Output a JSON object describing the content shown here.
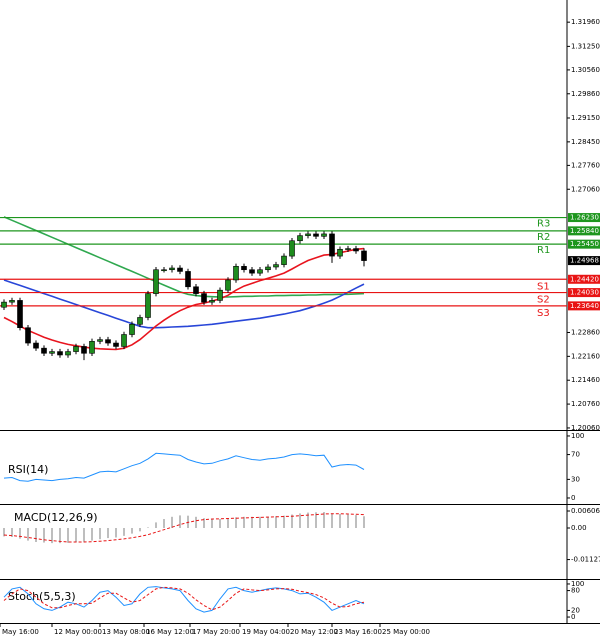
{
  "chart_data": [
    {
      "type": "candlestick",
      "open": [
        1.236,
        1.2375,
        1.238,
        1.23,
        1.2255,
        1.224,
        1.2225,
        1.223,
        1.222,
        1.223,
        1.2245,
        1.2225,
        1.226,
        1.2265,
        1.2255,
        1.2245,
        1.228,
        1.231,
        1.233,
        1.24,
        1.247,
        1.247,
        1.2475,
        1.2465,
        1.242,
        1.24,
        1.2375,
        1.238,
        1.241,
        1.244,
        1.248,
        1.247,
        1.246,
        1.247,
        1.2478,
        1.2485,
        1.251,
        1.2555,
        1.257,
        1.2575,
        1.2568,
        1.2575,
        1.251,
        1.253,
        1.2532,
        1.2525
      ],
      "high": [
        1.2383,
        1.2388,
        1.2388,
        1.2308,
        1.2263,
        1.2248,
        1.2238,
        1.2238,
        1.2238,
        1.2253,
        1.2253,
        1.2268,
        1.2273,
        1.2273,
        1.2263,
        1.2288,
        1.2318,
        1.2338,
        1.2408,
        1.2478,
        1.2478,
        1.2483,
        1.2483,
        1.2473,
        1.2428,
        1.2408,
        1.2388,
        1.2418,
        1.2448,
        1.2488,
        1.2488,
        1.2478,
        1.2478,
        1.2486,
        1.2493,
        1.2518,
        1.2563,
        1.2578,
        1.2583,
        1.2583,
        1.2583,
        1.2583,
        1.2538,
        1.254,
        1.254,
        1.2533
      ],
      "low": [
        1.2352,
        1.2367,
        1.2292,
        1.2247,
        1.2232,
        1.2217,
        1.2217,
        1.2212,
        1.2212,
        1.2222,
        1.2205,
        1.2217,
        1.2252,
        1.2247,
        1.2237,
        1.2237,
        1.2272,
        1.2302,
        1.2322,
        1.2392,
        1.2462,
        1.2462,
        1.2457,
        1.2412,
        1.2392,
        1.2367,
        1.2367,
        1.2372,
        1.2402,
        1.2432,
        1.2462,
        1.2452,
        1.2452,
        1.2462,
        1.247,
        1.2477,
        1.2502,
        1.2547,
        1.2562,
        1.256,
        1.256,
        1.249,
        1.2502,
        1.2522,
        1.2517,
        1.248
      ],
      "close": [
        1.2375,
        1.238,
        1.23,
        1.2255,
        1.224,
        1.2225,
        1.223,
        1.222,
        1.223,
        1.2245,
        1.2225,
        1.226,
        1.2265,
        1.2255,
        1.2245,
        1.228,
        1.231,
        1.233,
        1.24,
        1.247,
        1.247,
        1.2475,
        1.2465,
        1.242,
        1.24,
        1.2375,
        1.238,
        1.241,
        1.244,
        1.248,
        1.247,
        1.246,
        1.247,
        1.2478,
        1.2485,
        1.251,
        1.2555,
        1.257,
        1.2575,
        1.2568,
        1.2575,
        1.251,
        1.253,
        1.2532,
        1.2525,
        1.24968
      ],
      "up_color": "#1e8c1e",
      "down_color": "#000000",
      "series": [
        {
          "color": "#2fa84f",
          "values": [
            1.2625,
            1.2615,
            1.2605,
            1.2595,
            1.2585,
            1.2575,
            1.2565,
            1.2555,
            1.2545,
            1.2535,
            1.2525,
            1.2515,
            1.2505,
            1.2495,
            1.2485,
            1.2475,
            1.2465,
            1.2455,
            1.2445,
            1.2435,
            1.2425,
            1.2415,
            1.2405,
            1.2398,
            1.2394,
            1.2392,
            1.2391,
            1.239,
            1.239,
            1.2391,
            1.2392,
            1.2392,
            1.2393,
            1.2393,
            1.2394,
            1.2394,
            1.2395,
            1.2395,
            1.2396,
            1.2396,
            1.2397,
            1.2397,
            1.2398,
            1.2398,
            1.2399,
            1.24
          ]
        },
        {
          "color": "#2846d8",
          "values": [
            1.244,
            1.2432,
            1.2424,
            1.2416,
            1.2408,
            1.24,
            1.2392,
            1.2384,
            1.2376,
            1.2368,
            1.236,
            1.2352,
            1.2344,
            1.2336,
            1.2328,
            1.232,
            1.2312,
            1.2304,
            1.23,
            1.23,
            1.2301,
            1.2302,
            1.2303,
            1.2304,
            1.2306,
            1.2308,
            1.231,
            1.2313,
            1.2316,
            1.2319,
            1.2322,
            1.2325,
            1.2328,
            1.2332,
            1.2336,
            1.234,
            1.2345,
            1.235,
            1.2357,
            1.2364,
            1.2372,
            1.2381,
            1.2392,
            1.2404,
            1.2416,
            1.2428
          ]
        },
        {
          "color": "#e8141e",
          "values": [
            1.233,
            1.2318,
            1.2305,
            1.2292,
            1.2282,
            1.2272,
            1.2264,
            1.2257,
            1.2251,
            1.2247,
            1.2243,
            1.224,
            1.2238,
            1.2237,
            1.2236,
            1.224,
            1.225,
            1.2265,
            1.2285,
            1.2305,
            1.2322,
            1.2337,
            1.235,
            1.236,
            1.2368,
            1.2372,
            1.2378,
            1.2385,
            1.2395,
            1.241,
            1.2422,
            1.243,
            1.2438,
            1.2445,
            1.2452,
            1.246,
            1.2472,
            1.2485,
            1.2497,
            1.2505,
            1.2513,
            1.2515,
            1.252,
            1.2525,
            1.253,
            1.2532
          ]
        }
      ],
      "levels": [
        {
          "name": "R3",
          "value": 1.2623,
          "label": "1.26230",
          "color": "#1e961e"
        },
        {
          "name": "R2",
          "value": 1.2584,
          "label": "1.25840",
          "color": "#1e961e"
        },
        {
          "name": "R1",
          "value": 1.2545,
          "label": "1.25450",
          "color": "#1e961e"
        },
        {
          "name": "S1",
          "value": 1.2442,
          "label": "1.24420",
          "color": "#e81414"
        },
        {
          "name": "S2",
          "value": 1.2403,
          "label": "1.24030",
          "color": "#e81414"
        },
        {
          "name": "S3",
          "value": 1.2364,
          "label": "1.23640",
          "color": "#e81414"
        }
      ],
      "current_price": {
        "value": 1.24968,
        "label": "1.24968"
      },
      "ylim": [
        1.2,
        1.3261
      ],
      "yticks": [
        {
          "value": 1.3196,
          "label": "1.31960"
        },
        {
          "value": 1.3125,
          "label": "1.31250"
        },
        {
          "value": 1.3056,
          "label": "1.30560"
        },
        {
          "value": 1.2986,
          "label": "1.29860"
        },
        {
          "value": 1.2915,
          "label": "1.29150"
        },
        {
          "value": 1.2845,
          "label": "1.28450"
        },
        {
          "value": 1.2776,
          "label": "1.27760"
        },
        {
          "value": 1.2706,
          "label": "1.27060"
        },
        {
          "value": 1.2286,
          "label": "1.22860"
        },
        {
          "value": 1.2216,
          "label": "1.22160"
        },
        {
          "value": 1.2146,
          "label": "1.21460"
        },
        {
          "value": 1.2076,
          "label": "1.20760"
        },
        {
          "value": 1.2006,
          "label": "1.20060"
        }
      ]
    },
    {
      "type": "line",
      "title": "RSI(14)",
      "series": [
        {
          "color": "#1e90ff",
          "values": [
            32,
            33,
            28,
            27,
            30,
            29,
            28,
            30,
            31,
            33,
            32,
            37,
            42,
            43,
            42,
            47,
            52,
            56,
            63,
            72,
            71,
            70,
            69,
            62,
            58,
            55,
            56,
            60,
            63,
            68,
            65,
            62,
            61,
            63,
            64,
            66,
            70,
            71,
            70,
            68,
            69,
            50,
            53,
            54,
            53,
            46
          ]
        }
      ],
      "ylim": [
        -9.7,
        108
      ],
      "yticks": [
        100,
        70,
        30,
        0
      ]
    },
    {
      "type": "macd",
      "title": "MACD(12,26,9)",
      "color": "#a8a8a8",
      "signal_color": "#e81414",
      "histogram": [
        -0.003,
        -0.0032,
        -0.0038,
        -0.0045,
        -0.005,
        -0.0052,
        -0.0054,
        -0.0054,
        -0.0053,
        -0.005,
        -0.0049,
        -0.0045,
        -0.004,
        -0.0036,
        -0.0034,
        -0.0028,
        -0.002,
        -0.0012,
        0.0002,
        0.002,
        0.0032,
        0.004,
        0.0045,
        0.0044,
        0.004,
        0.0035,
        0.0032,
        0.0032,
        0.0034,
        0.0038,
        0.004,
        0.004,
        0.004,
        0.0041,
        0.0042,
        0.0044,
        0.0048,
        0.0052,
        0.0055,
        0.0056,
        0.0057,
        0.0052,
        0.005,
        0.0048,
        0.0046,
        0.0042
      ],
      "signal": [
        -0.0025,
        -0.0027,
        -0.003,
        -0.0034,
        -0.0038,
        -0.0042,
        -0.0045,
        -0.0048,
        -0.005,
        -0.005,
        -0.005,
        -0.0049,
        -0.0047,
        -0.0045,
        -0.0042,
        -0.0039,
        -0.0035,
        -0.003,
        -0.0024,
        -0.0015,
        -0.0006,
        0.0003,
        0.0012,
        0.002,
        0.0026,
        0.003,
        0.0032,
        0.0033,
        0.0034,
        0.0035,
        0.0036,
        0.0037,
        0.0038,
        0.0039,
        0.004,
        0.0041,
        0.0042,
        0.0044,
        0.0046,
        0.0048,
        0.005,
        0.0051,
        0.0051,
        0.005,
        0.0049,
        0.0048
      ],
      "ylim": [
        -0.01821,
        0.00821
      ],
      "yticks": [
        0.006069,
        {
          "value": 0,
          "label": "0.00"
        },
        -0.011272
      ]
    },
    {
      "type": "line",
      "title": "Stoch(5,5,3)",
      "series": [
        {
          "color": "#1e90ff",
          "values": [
            60,
            85,
            90,
            70,
            40,
            25,
            20,
            30,
            45,
            40,
            30,
            50,
            75,
            80,
            60,
            35,
            40,
            70,
            90,
            92,
            88,
            85,
            80,
            50,
            25,
            15,
            20,
            55,
            85,
            90,
            80,
            75,
            80,
            85,
            88,
            85,
            80,
            70,
            72,
            60,
            45,
            20,
            30,
            40,
            50,
            40
          ]
        },
        {
          "color": "#e81414",
          "dashed": true,
          "values": [
            50,
            70,
            85,
            80,
            60,
            40,
            28,
            28,
            35,
            40,
            40,
            42,
            58,
            72,
            72,
            58,
            45,
            50,
            68,
            85,
            90,
            88,
            85,
            72,
            52,
            35,
            22,
            30,
            50,
            72,
            85,
            82,
            80,
            82,
            85,
            86,
            84,
            78,
            74,
            68,
            58,
            42,
            30,
            32,
            40,
            45
          ]
        }
      ],
      "ylim": [
        -18,
        112
      ],
      "yticks": [
        100,
        80,
        20,
        0
      ],
      "xlim": [
        -0.5,
        70.375
      ],
      "xticks": [
        {
          "value": -0.5,
          "label": "May 16:00"
        },
        {
          "value": 6,
          "label": "12 May 00:00"
        },
        {
          "value": 12,
          "label": "13 May 08:00"
        },
        {
          "value": 17.5,
          "label": "16 May 12:00"
        },
        {
          "value": 23.25,
          "label": "17 May 20:00"
        },
        {
          "value": 29.5,
          "label": "19 May 04:00"
        },
        {
          "value": 35.5,
          "label": "20 May 12:00"
        },
        {
          "value": 41,
          "label": "23 May 16:00"
        },
        {
          "value": 47,
          "label": "25 May 00:00"
        }
      ]
    }
  ]
}
